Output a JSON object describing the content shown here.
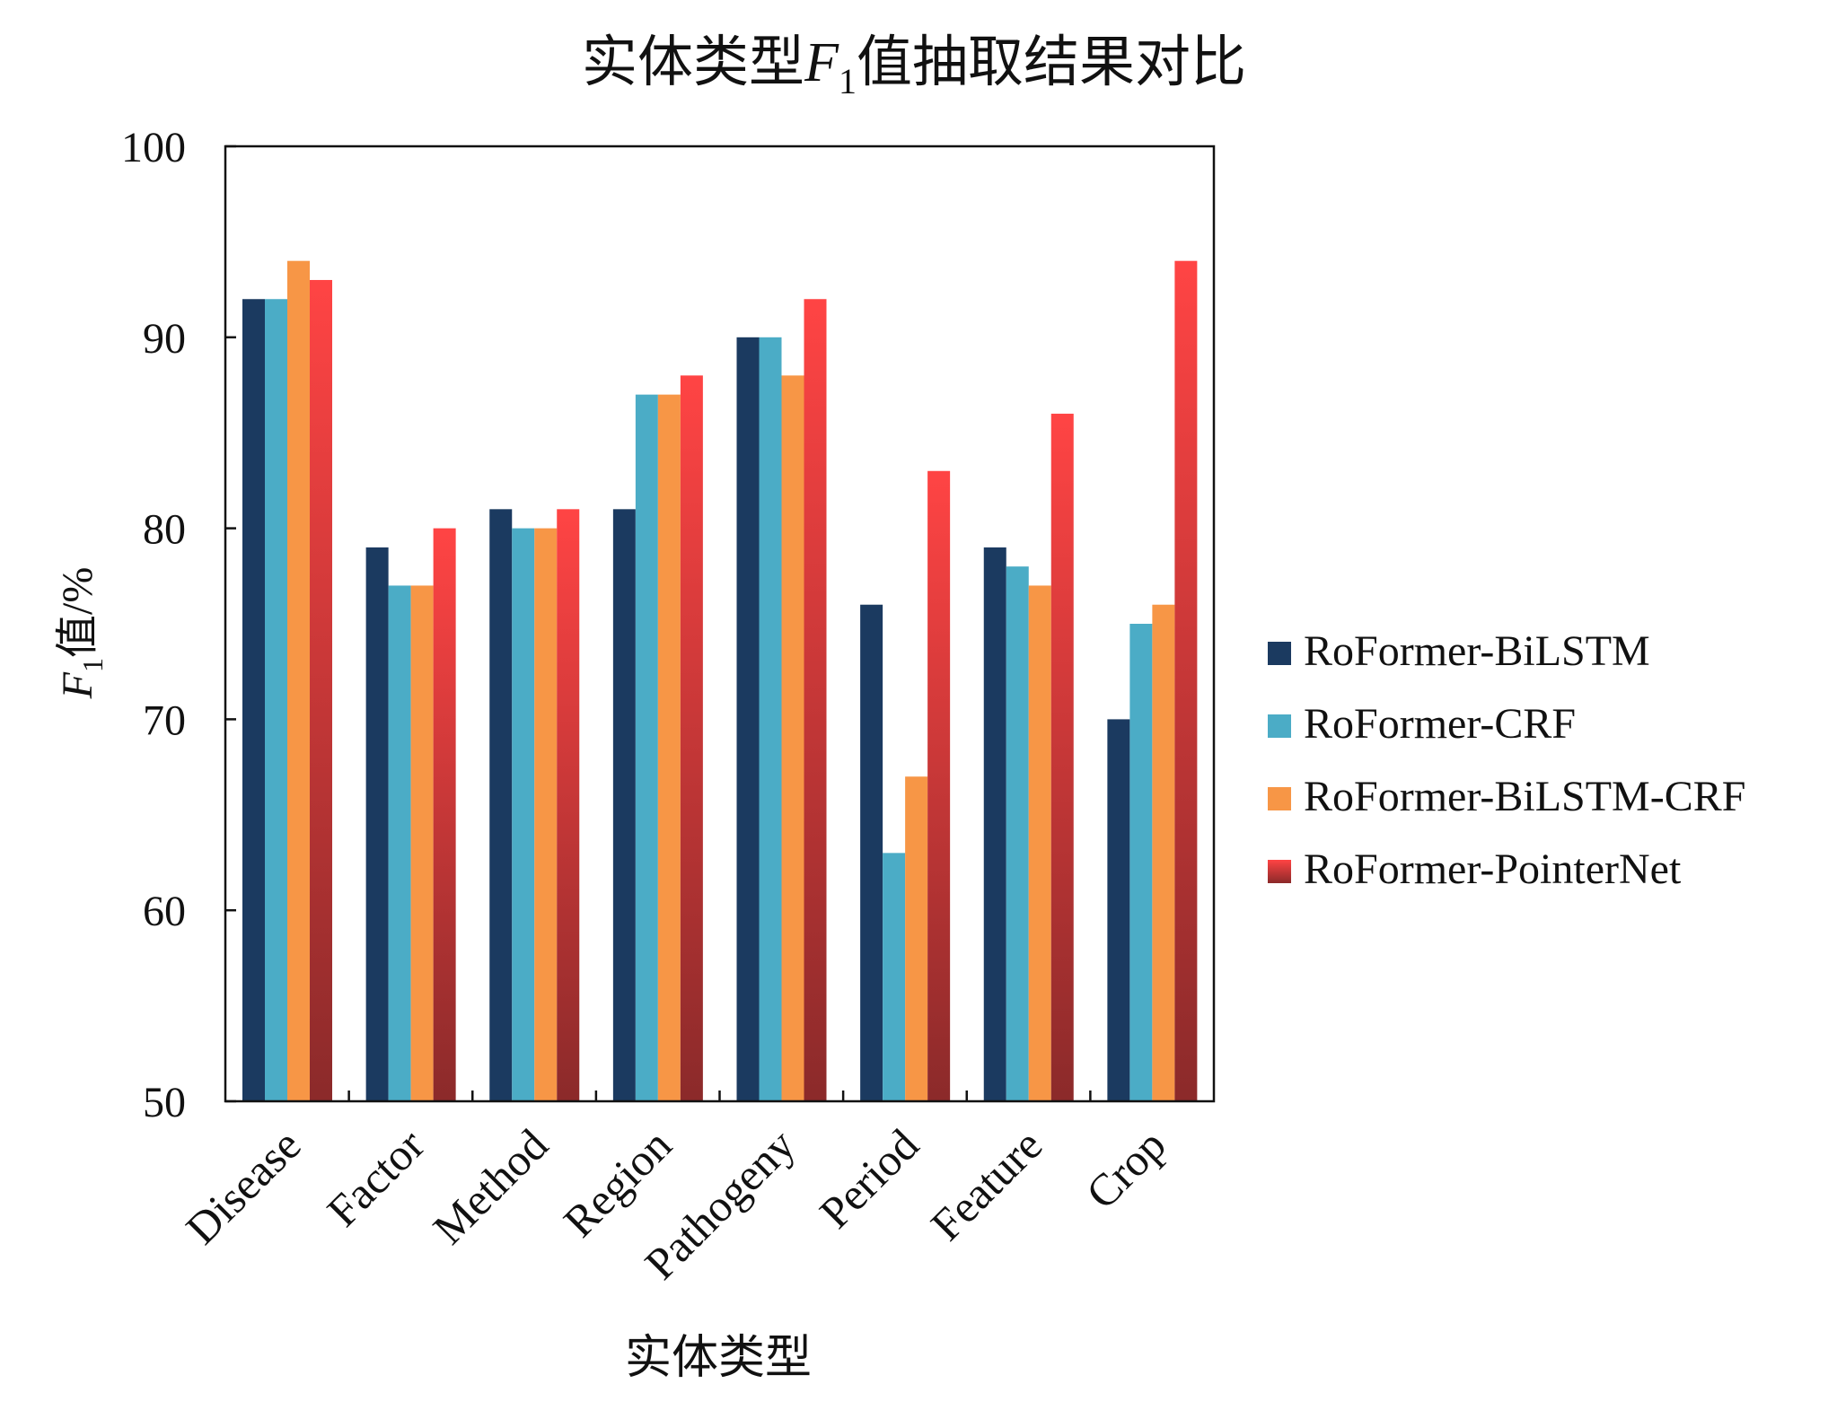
{
  "chart_data": {
    "type": "bar",
    "title": {
      "pre": "实体类型",
      "var": "F",
      "sub": "1",
      "post": "值抽取结果对比"
    },
    "xlabel": "实体类型",
    "ylabel": {
      "var": "F",
      "sub": "1",
      "post": "值/%"
    },
    "ylim": [
      50,
      100
    ],
    "yticks": [
      "50",
      "60",
      "70",
      "80",
      "90",
      "100"
    ],
    "legend_position": "right",
    "categories": [
      "Disease",
      "Factor",
      "Method",
      "Region",
      "Pathogeny",
      "Period",
      "Feature",
      "Crop"
    ],
    "series": [
      {
        "name": "RoFormer-BiLSTM",
        "color": "#1b3a60",
        "values": [
          92,
          79,
          81,
          81,
          90,
          76,
          79,
          70
        ]
      },
      {
        "name": "RoFormer-CRF",
        "color": "#4bacc6",
        "values": [
          92,
          77,
          80,
          87,
          90,
          63,
          78,
          75
        ]
      },
      {
        "name": "RoFormer-BiLSTM-CRF",
        "color": "#f79646",
        "values": [
          94,
          77,
          80,
          87,
          88,
          67,
          77,
          76
        ]
      },
      {
        "name": "RoFormer-PointerNet",
        "color": "#ff4444",
        "color_bottom": "#8b2a2a",
        "values": [
          93,
          80,
          81,
          88,
          92,
          83,
          86,
          94
        ]
      }
    ]
  }
}
